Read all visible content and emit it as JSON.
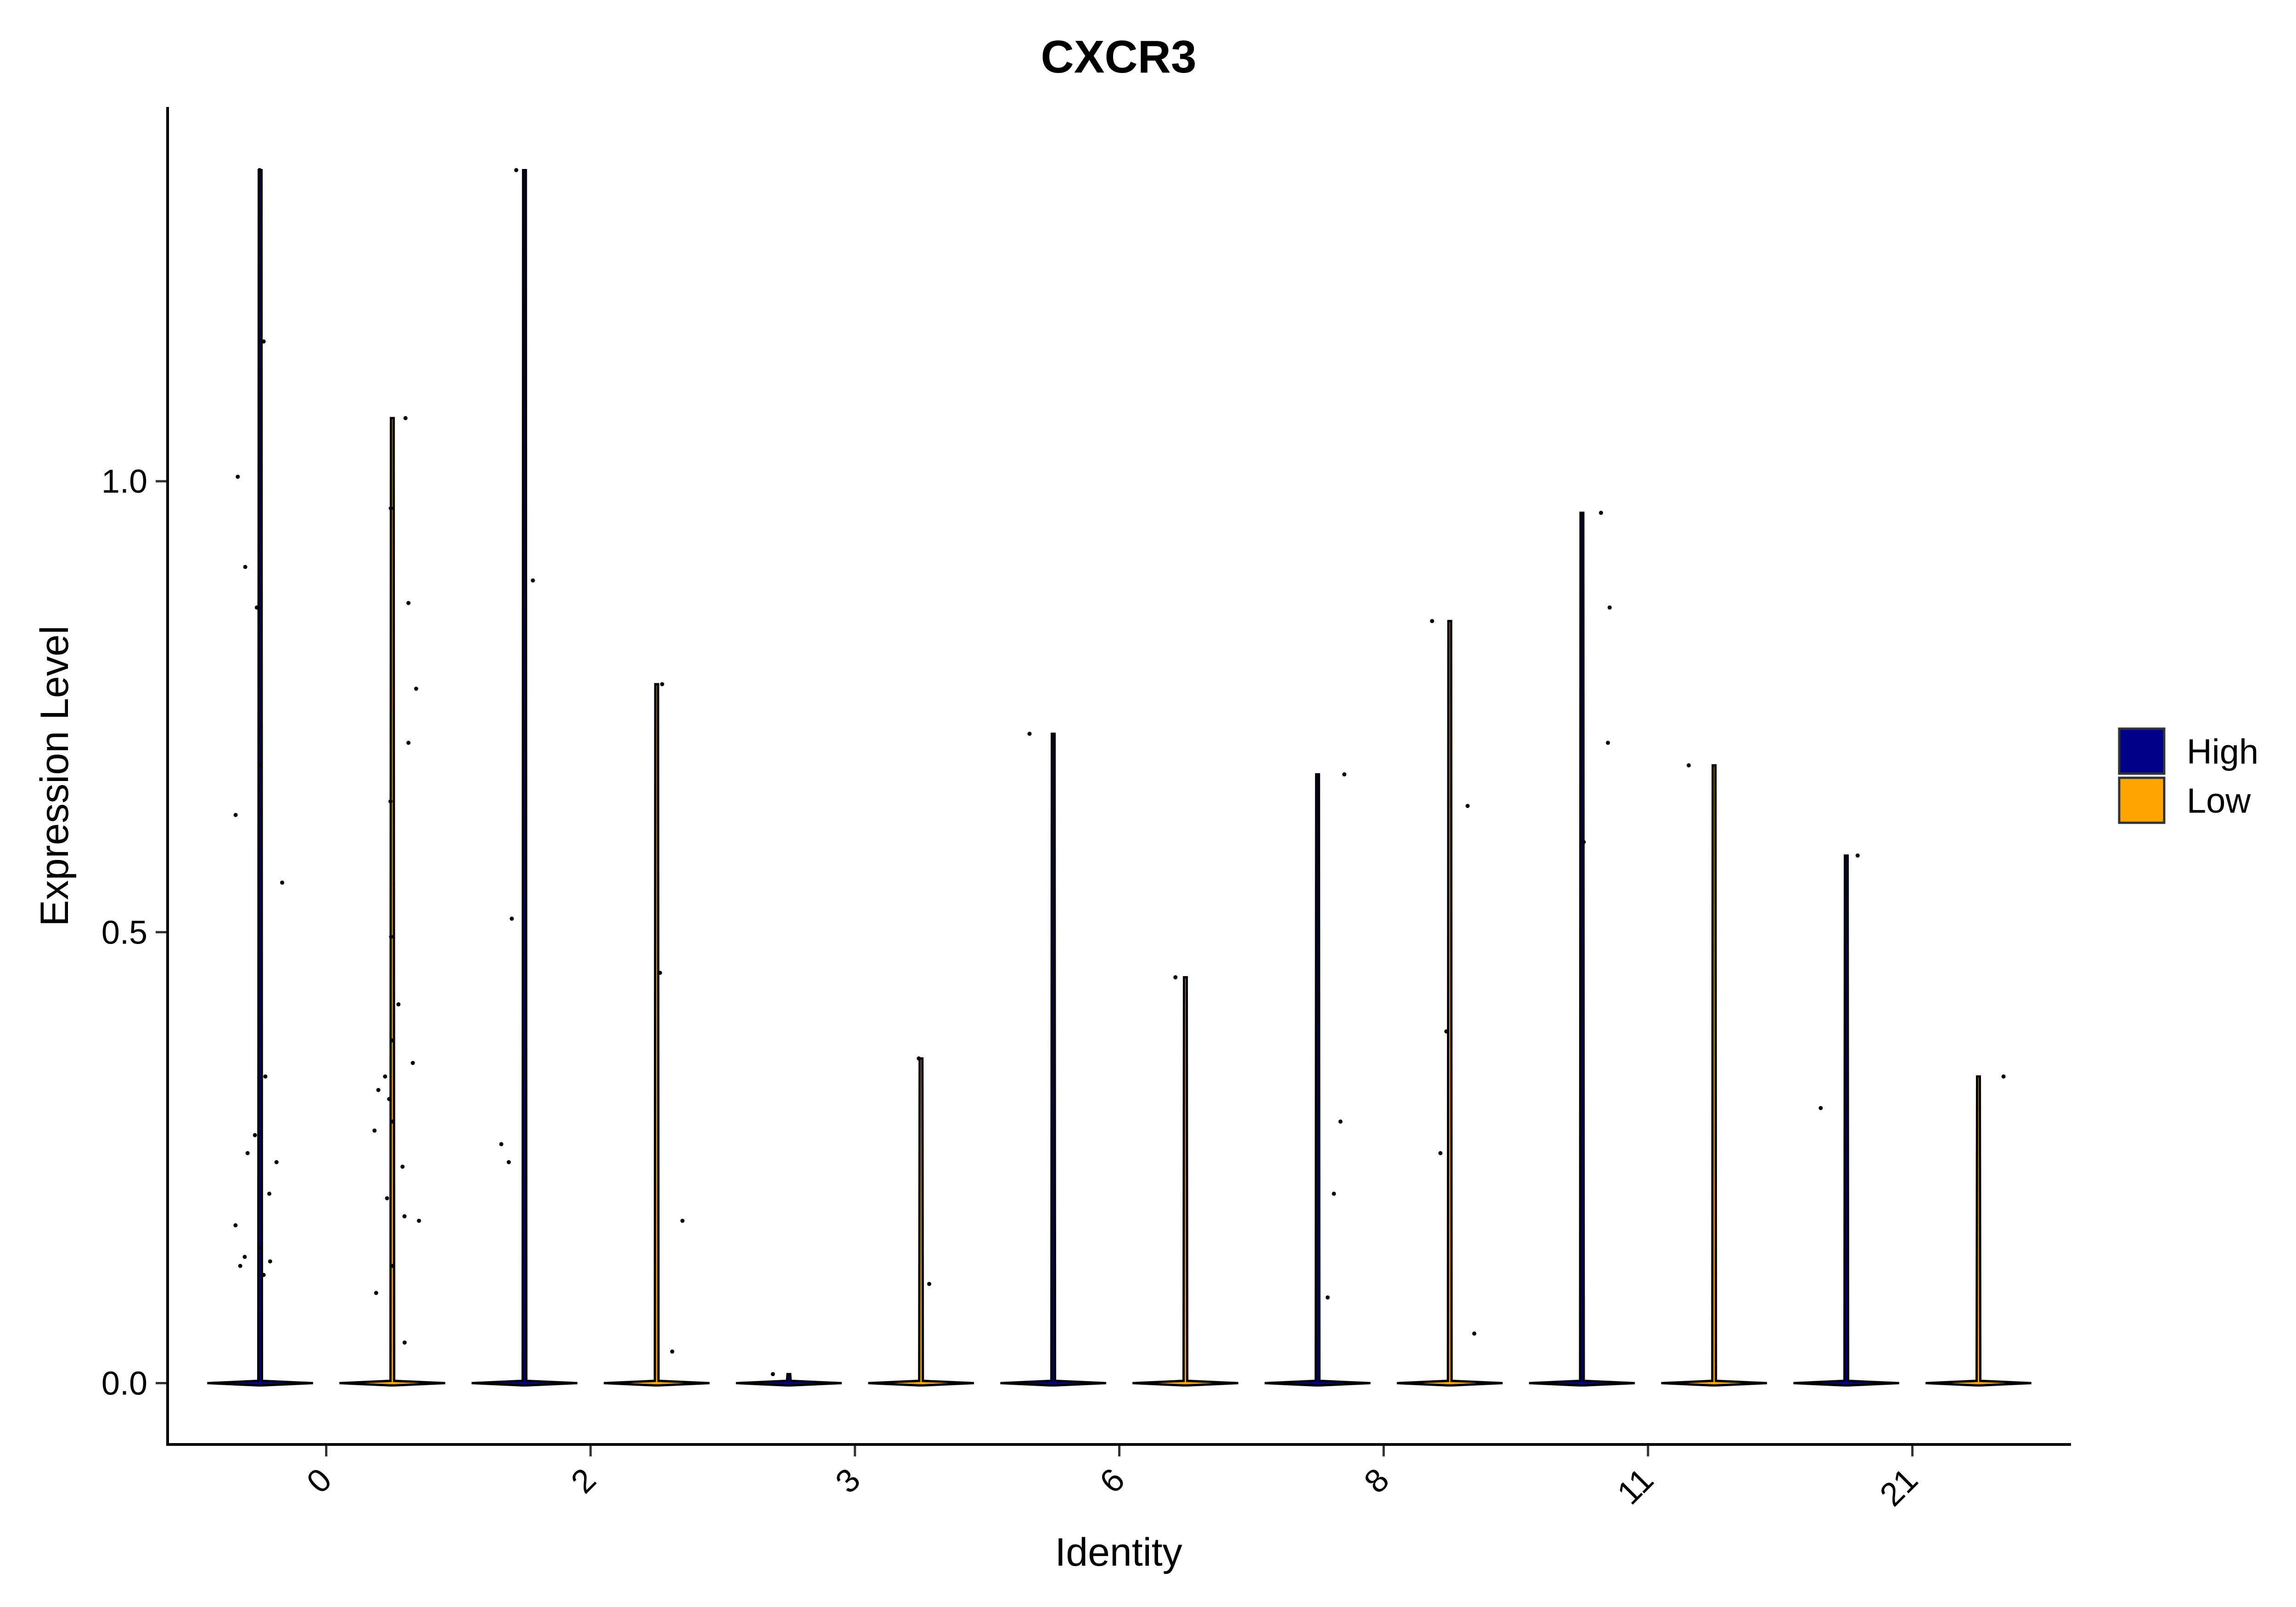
{
  "chart_data": {
    "type": "violin",
    "title": "CXCR3",
    "xlabel": "Identity",
    "ylabel": "Expression Level",
    "categories": [
      "0",
      "2",
      "3",
      "6",
      "8",
      "11",
      "21"
    ],
    "ylim": [
      -0.068,
      1.415
    ],
    "yticks": [
      0.0,
      0.5,
      1.0
    ],
    "grid": false,
    "legend_position": "right",
    "series": [
      {
        "name": "High",
        "color": "#00008B",
        "violins": [
          {
            "max": 1.345,
            "points": [
              1.345,
              1.155,
              1.005,
              0.905,
              0.86,
              0.685,
              0.63,
              0.555,
              0.34,
              0.275,
              0.255,
              0.245,
              0.21,
              0.175,
              0.15,
              0.14,
              0.135,
              0.13,
              0.12
            ]
          },
          {
            "max": 1.345,
            "points": [
              1.345,
              0.89,
              0.515,
              0.265,
              0.245
            ]
          },
          {
            "max": 0.01,
            "points": [
              0.01
            ]
          },
          {
            "max": 0.72,
            "points": [
              0.72
            ]
          },
          {
            "max": 0.675,
            "points": [
              0.675,
              0.29,
              0.21,
              0.095
            ]
          },
          {
            "max": 0.965,
            "points": [
              0.965,
              0.86,
              0.71,
              0.6
            ]
          },
          {
            "max": 0.585,
            "points": [
              0.585,
              0.305
            ]
          }
        ]
      },
      {
        "name": "Low",
        "color": "#FFA500",
        "violins": [
          {
            "max": 1.07,
            "points": [
              1.07,
              0.97,
              0.865,
              0.77,
              0.71,
              0.645,
              0.495,
              0.42,
              0.38,
              0.355,
              0.34,
              0.325,
              0.315,
              0.29,
              0.28,
              0.24,
              0.205,
              0.185,
              0.18,
              0.13,
              0.1,
              0.045
            ]
          },
          {
            "max": 0.775,
            "points": [
              0.775,
              0.455,
              0.18,
              0.035
            ]
          },
          {
            "max": 0.36,
            "points": [
              0.36,
              0.11
            ]
          },
          {
            "max": 0.45,
            "points": [
              0.45
            ]
          },
          {
            "max": 0.845,
            "points": [
              0.845,
              0.64,
              0.39,
              0.255,
              0.055
            ]
          },
          {
            "max": 0.685,
            "points": [
              0.685
            ]
          },
          {
            "max": 0.34,
            "points": [
              0.34
            ]
          }
        ]
      }
    ]
  }
}
